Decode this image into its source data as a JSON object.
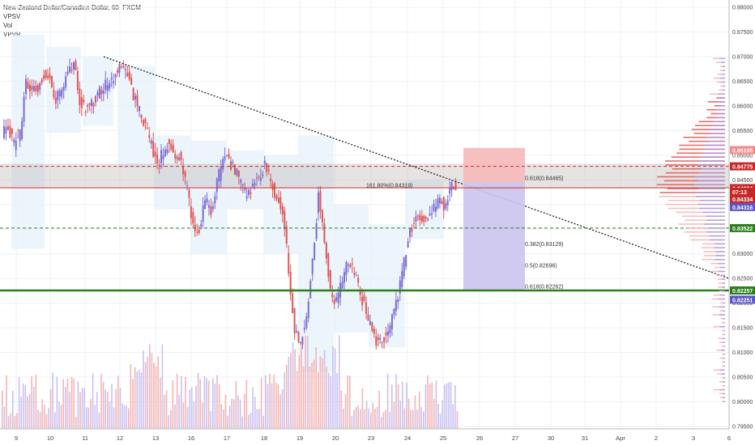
{
  "chart_title": "New Zealand Dollar/Canadian Dollar, 60, FXCM",
  "indicators": [
    "VPSV",
    "Vol",
    "VPVR"
  ],
  "colors": {
    "up": "#7b6bd6",
    "down": "#e05555",
    "vol_up": "#c9c0f2",
    "vol_down": "#f5b4b4",
    "green": "#2e7d1f",
    "red": "#d32f2f",
    "grid": "#eef0f4"
  },
  "chart_data": {
    "type": "candlestick",
    "ylim": [
      0.7945,
      0.8815
    ],
    "y_ticks": [
      "0.79500",
      "0.80000",
      "0.80500",
      "0.81000",
      "0.81500",
      "0.82000",
      "0.82500",
      "0.83000",
      "0.83500",
      "0.84000",
      "0.84500",
      "0.85000",
      "0.85500",
      "0.86000",
      "0.86500",
      "0.87000",
      "0.87500",
      "0.88000"
    ],
    "x_ticks": [
      "9",
      "10",
      "11",
      "12",
      "13",
      "16",
      "17",
      "18",
      "19",
      "20",
      "23",
      "24",
      "25",
      "26",
      "27",
      "30",
      "31",
      "Apr",
      "2",
      "3",
      "6"
    ],
    "price_path": [
      [
        0,
        0.8545
      ],
      [
        1,
        0.856
      ],
      [
        2,
        0.852
      ],
      [
        3,
        0.8545
      ],
      [
        4,
        0.865
      ],
      [
        5,
        0.863
      ],
      [
        6,
        0.864
      ],
      [
        7,
        0.866
      ],
      [
        8,
        0.865
      ],
      [
        9,
        0.861
      ],
      [
        10,
        0.864
      ],
      [
        11,
        0.866
      ],
      [
        12,
        0.869
      ],
      [
        13,
        0.861
      ],
      [
        14,
        0.859
      ],
      [
        15,
        0.8605
      ],
      [
        16,
        0.862
      ],
      [
        17,
        0.864
      ],
      [
        18,
        0.865
      ],
      [
        19,
        0.866
      ],
      [
        20,
        0.869
      ],
      [
        21,
        0.866
      ],
      [
        22,
        0.862
      ],
      [
        23,
        0.859
      ],
      [
        24,
        0.8565
      ],
      [
        25,
        0.852
      ],
      [
        26,
        0.8475
      ],
      [
        27,
        0.851
      ],
      [
        28,
        0.853
      ],
      [
        29,
        0.8505
      ],
      [
        30,
        0.849
      ],
      [
        31,
        0.843
      ],
      [
        32,
        0.836
      ],
      [
        33,
        0.8345
      ],
      [
        34,
        0.841
      ],
      [
        35,
        0.839
      ],
      [
        36,
        0.844
      ],
      [
        37,
        0.85
      ],
      [
        38,
        0.849
      ],
      [
        39,
        0.847
      ],
      [
        40,
        0.845
      ],
      [
        41,
        0.841
      ],
      [
        42,
        0.844
      ],
      [
        43,
        0.846
      ],
      [
        44,
        0.848
      ],
      [
        45,
        0.845
      ],
      [
        46,
        0.8415
      ],
      [
        47,
        0.839
      ],
      [
        48,
        0.827
      ],
      [
        49,
        0.815
      ],
      [
        50,
        0.812
      ],
      [
        51,
        0.818
      ],
      [
        52,
        0.828
      ],
      [
        53,
        0.842
      ],
      [
        54,
        0.833
      ],
      [
        55,
        0.823
      ],
      [
        56,
        0.82
      ],
      [
        57,
        0.825
      ],
      [
        58,
        0.829
      ],
      [
        59,
        0.826
      ],
      [
        60,
        0.822
      ],
      [
        61,
        0.818
      ],
      [
        62,
        0.814
      ],
      [
        63,
        0.812
      ],
      [
        64,
        0.813
      ],
      [
        65,
        0.815
      ],
      [
        66,
        0.82
      ],
      [
        67,
        0.826
      ],
      [
        68,
        0.833
      ],
      [
        69,
        0.837
      ],
      [
        70,
        0.838
      ],
      [
        71,
        0.836
      ],
      [
        72,
        0.839
      ],
      [
        73,
        0.841
      ],
      [
        74,
        0.84
      ],
      [
        75,
        0.843
      ],
      [
        76,
        0.844
      ]
    ],
    "x_slots": 76,
    "trendline": {
      "from": [
        0.87
      ],
      "to": [
        0.825
      ]
    },
    "levels": [
      {
        "label": "0.85105",
        "value": 0.85105,
        "color": "#f48a8a"
      },
      {
        "label": "0.84775",
        "value": 0.84775,
        "color": "#c62828"
      },
      {
        "label": "0.84334",
        "value": 0.84334,
        "color": "#c62828"
      },
      {
        "label": "07:13",
        "value": 0.8426,
        "color": "#c62828"
      },
      {
        "label": "0.84334",
        "value": 0.8411,
        "color": "#c62828"
      },
      {
        "label": "0.84316",
        "value": 0.8395,
        "color": "#5c55c8"
      },
      {
        "label": "0.83522",
        "value": 0.83522,
        "color": "#2e7d1f"
      },
      {
        "label": "0.82257",
        "value": 0.82257,
        "color": "#2e7d1f"
      },
      {
        "label": "0.82251",
        "value": 0.8207,
        "color": "#5c55c8"
      }
    ],
    "fib_labels": [
      {
        "text": "161.80%(0.84319)",
        "value": 0.84319
      },
      {
        "text": "0.618(0.84465)",
        "value": 0.84465
      },
      {
        "text": "0.382(0.83129)",
        "value": 0.83129
      },
      {
        "text": "0.5(0.82696)",
        "value": 0.82696
      },
      {
        "text": "0.618(0.82262)",
        "value": 0.82262
      }
    ]
  }
}
